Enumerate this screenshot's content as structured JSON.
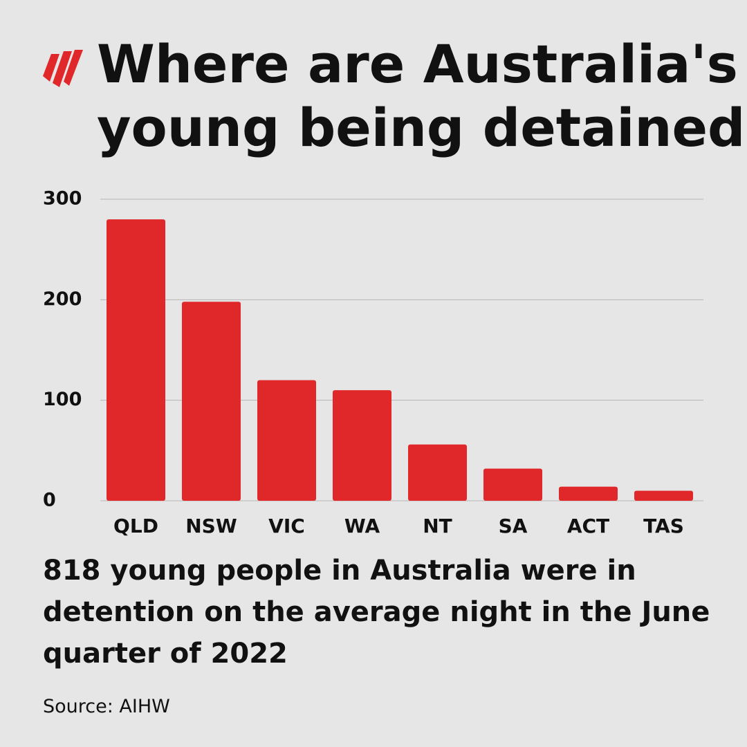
{
  "chart_data": {
    "type": "bar",
    "title": [
      "Where are Australia's",
      "young being detained?"
    ],
    "categories": [
      "QLD",
      "NSW",
      "VIC",
      "WA",
      "NT",
      "SA",
      "ACT",
      "TAS"
    ],
    "values": [
      280,
      198,
      120,
      110,
      56,
      32,
      14,
      10
    ],
    "color": "#e0282a",
    "ylim": [
      0,
      300
    ],
    "yticks": [
      0,
      100,
      200,
      300
    ],
    "grid": true,
    "annotation": "818 young people in Australia were in detention on the average night in the June quarter of 2022",
    "source": "Source: AIHW"
  }
}
